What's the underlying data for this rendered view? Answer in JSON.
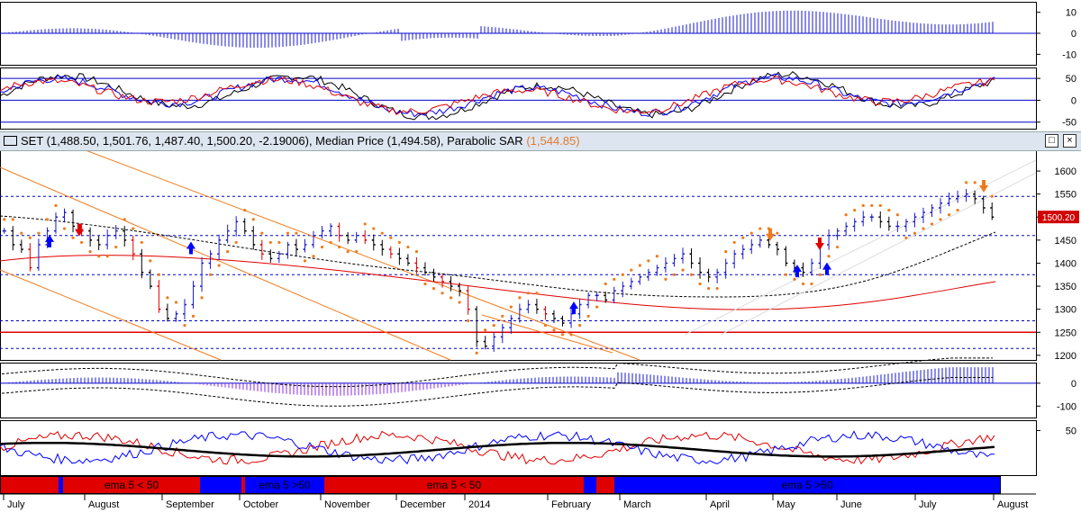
{
  "colors": {
    "up_bar": "#1a1acc",
    "down_bar": "#000000",
    "red": "#e00000",
    "orange": "#f07a1a",
    "grid": "#0000cc",
    "sar_dot": "#f07a1a",
    "ema_blue": "#0000ff"
  },
  "title": {
    "symbol_text": "SET (1,488.50, 1,501.76, 1,487.40, 1,500.20, -2.19006), Median Price (1,494.58), Parabolic SAR",
    "sar_value": "(1,544.85)",
    "window_buttons": [
      "□",
      "×"
    ]
  },
  "price_label": "1500.20",
  "ema_bands": [
    {
      "label": "",
      "state": "below"
    },
    {
      "label": "ema 5 < 50",
      "state": "below"
    },
    {
      "label": "",
      "state": "above"
    },
    {
      "label": "ema 5 >50",
      "state": "above"
    },
    {
      "label": "ema 5 < 50",
      "state": "below"
    },
    {
      "label": "ema 5 >50",
      "state": "above"
    }
  ],
  "chart_data": [
    {
      "type": "bar",
      "panel": "histogram",
      "yticks": [
        10,
        0,
        -10
      ],
      "ylim": [
        -15,
        15
      ]
    },
    {
      "type": "line",
      "panel": "stochastic",
      "yticks": [
        50,
        0,
        -50
      ],
      "ylim": [
        -65,
        75
      ]
    },
    {
      "type": "candlestick",
      "panel": "price",
      "yticks": [
        1600,
        1550,
        1500,
        1450,
        1400,
        1350,
        1300,
        1250,
        1200
      ],
      "ylim": [
        1190,
        1645
      ],
      "last_close": 1500.2,
      "horizontal_levels": [
        1645,
        1545,
        1460,
        1375,
        1275,
        1215
      ],
      "support_line": 1250,
      "x_labels": [
        "July",
        "August",
        "September",
        "October",
        "November",
        "December",
        "2014",
        "February",
        "March",
        "April",
        "May",
        "June",
        "July",
        "August"
      ],
      "closes": [
        1470,
        1440,
        1430,
        1390,
        1440,
        1470,
        1500,
        1510,
        1480,
        1470,
        1450,
        1440,
        1460,
        1470,
        1450,
        1420,
        1380,
        1350,
        1300,
        1280,
        1290,
        1310,
        1350,
        1400,
        1420,
        1450,
        1470,
        1490,
        1470,
        1440,
        1420,
        1410,
        1420,
        1440,
        1430,
        1440,
        1460,
        1470,
        1480,
        1460,
        1450,
        1460,
        1450,
        1440,
        1430,
        1420,
        1410,
        1400,
        1390,
        1380,
        1370,
        1360,
        1350,
        1340,
        1300,
        1230,
        1220,
        1240,
        1260,
        1280,
        1300,
        1310,
        1300,
        1290,
        1280,
        1270,
        1290,
        1310,
        1330,
        1330,
        1320,
        1340,
        1350,
        1360,
        1370,
        1380,
        1390,
        1400,
        1410,
        1420,
        1400,
        1380,
        1370,
        1380,
        1400,
        1420,
        1430,
        1440,
        1450,
        1440,
        1430,
        1400,
        1390,
        1380,
        1400,
        1440,
        1460,
        1470,
        1480,
        1490,
        1500,
        1500,
        1490,
        1480,
        1480,
        1490,
        1500,
        1510,
        1520,
        1530,
        1540,
        1545,
        1550,
        1540,
        1520,
        1500
      ]
    },
    {
      "type": "line",
      "panel": "macd",
      "yticks": [
        0,
        -100
      ],
      "ylim": [
        -150,
        90
      ]
    },
    {
      "type": "line",
      "panel": "momentum",
      "yticks": [
        50
      ],
      "ylim": [
        -15,
        65
      ]
    }
  ]
}
